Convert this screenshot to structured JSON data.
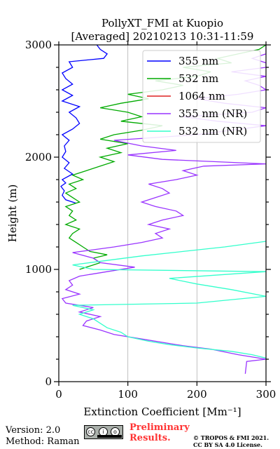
{
  "chart_data": {
    "type": "line",
    "title": [
      "PollyXT_FMI at Kuopio",
      "[Averaged] 20210213 10:31-11:59"
    ],
    "xlabel": "Extinction Coefficient [Mm⁻¹]",
    "ylabel": "Height (m)",
    "xlim": [
      0,
      300
    ],
    "ylim": [
      0,
      3000
    ],
    "xticks": [
      0,
      100,
      200,
      300
    ],
    "yticks": [
      0,
      1000,
      2000,
      3000
    ],
    "grid": true,
    "legend_position": "top-right",
    "series": [
      {
        "name": "355 nm",
        "color": "#0000ff",
        "points": [
          [
            25,
            1590
          ],
          [
            10,
            1620
          ],
          [
            5,
            1660
          ],
          [
            8,
            1700
          ],
          [
            3,
            1740
          ],
          [
            10,
            1770
          ],
          [
            5,
            1800
          ],
          [
            20,
            1850
          ],
          [
            8,
            1900
          ],
          [
            15,
            1950
          ],
          [
            5,
            2000
          ],
          [
            10,
            2050
          ],
          [
            8,
            2100
          ],
          [
            15,
            2150
          ],
          [
            5,
            2200
          ],
          [
            20,
            2250
          ],
          [
            30,
            2300
          ],
          [
            25,
            2350
          ],
          [
            15,
            2400
          ],
          [
            30,
            2450
          ],
          [
            5,
            2500
          ],
          [
            20,
            2550
          ],
          [
            5,
            2600
          ],
          [
            20,
            2650
          ],
          [
            10,
            2700
          ],
          [
            5,
            2750
          ],
          [
            20,
            2800
          ],
          [
            15,
            2850
          ],
          [
            65,
            2880
          ],
          [
            70,
            2920
          ],
          [
            60,
            2960
          ],
          [
            55,
            3000
          ]
        ]
      },
      {
        "name": "532 nm",
        "color": "#00aa00",
        "points": [
          [
            30,
            1000
          ],
          [
            45,
            1030
          ],
          [
            60,
            1060
          ],
          [
            50,
            1100
          ],
          [
            70,
            1130
          ],
          [
            45,
            1160
          ],
          [
            35,
            1200
          ],
          [
            25,
            1240
          ],
          [
            15,
            1280
          ],
          [
            20,
            1320
          ],
          [
            30,
            1360
          ],
          [
            10,
            1400
          ],
          [
            25,
            1440
          ],
          [
            15,
            1480
          ],
          [
            20,
            1520
          ],
          [
            10,
            1560
          ],
          [
            30,
            1600
          ],
          [
            20,
            1640
          ],
          [
            10,
            1680
          ],
          [
            25,
            1720
          ],
          [
            15,
            1760
          ],
          [
            35,
            1800
          ],
          [
            20,
            1840
          ],
          [
            40,
            1880
          ],
          [
            60,
            1920
          ],
          [
            80,
            1960
          ],
          [
            60,
            2000
          ],
          [
            90,
            2040
          ],
          [
            70,
            2080
          ],
          [
            100,
            2120
          ],
          [
            60,
            2160
          ],
          [
            80,
            2200
          ],
          [
            120,
            2240
          ],
          [
            150,
            2280
          ],
          [
            90,
            2320
          ],
          [
            120,
            2360
          ],
          [
            100,
            2400
          ],
          [
            60,
            2440
          ],
          [
            90,
            2480
          ],
          [
            130,
            2520
          ],
          [
            100,
            2560
          ],
          [
            150,
            2600
          ],
          [
            180,
            2640
          ],
          [
            140,
            2680
          ],
          [
            200,
            2720
          ],
          [
            220,
            2760
          ],
          [
            180,
            2800
          ],
          [
            250,
            2840
          ],
          [
            230,
            2880
          ],
          [
            260,
            2920
          ],
          [
            290,
            2960
          ],
          [
            300,
            3000
          ]
        ]
      },
      {
        "name": "1064 nm",
        "color": "#dd2222",
        "points": []
      },
      {
        "name": "355 nm (NR)",
        "color": "#9933ff",
        "points": [
          [
            270,
            70
          ],
          [
            272,
            180
          ],
          [
            300,
            200
          ],
          [
            260,
            240
          ],
          [
            220,
            290
          ],
          [
            180,
            320
          ],
          [
            150,
            350
          ],
          [
            120,
            380
          ],
          [
            80,
            420
          ],
          [
            60,
            460
          ],
          [
            35,
            500
          ],
          [
            40,
            540
          ],
          [
            60,
            580
          ],
          [
            30,
            620
          ],
          [
            50,
            660
          ],
          [
            10,
            700
          ],
          [
            5,
            740
          ],
          [
            30,
            780
          ],
          [
            10,
            820
          ],
          [
            20,
            860
          ],
          [
            15,
            900
          ],
          [
            30,
            940
          ],
          [
            70,
            980
          ],
          [
            110,
            1020
          ],
          [
            60,
            1060
          ],
          [
            50,
            1100
          ],
          [
            20,
            1150
          ],
          [
            80,
            1200
          ],
          [
            120,
            1240
          ],
          [
            150,
            1280
          ],
          [
            140,
            1320
          ],
          [
            160,
            1360
          ],
          [
            130,
            1400
          ],
          [
            150,
            1440
          ],
          [
            180,
            1480
          ],
          [
            170,
            1520
          ],
          [
            140,
            1560
          ],
          [
            120,
            1600
          ],
          [
            140,
            1640
          ],
          [
            160,
            1680
          ],
          [
            150,
            1720
          ],
          [
            130,
            1760
          ],
          [
            170,
            1800
          ],
          [
            200,
            1840
          ],
          [
            180,
            1880
          ],
          [
            210,
            1920
          ],
          [
            300,
            1940
          ],
          [
            150,
            1980
          ],
          [
            100,
            2020
          ],
          [
            170,
            2060
          ],
          [
            120,
            2100
          ],
          [
            80,
            2150
          ],
          [
            200,
            2200
          ],
          [
            250,
            2240
          ],
          [
            300,
            2280
          ],
          [
            230,
            2320
          ],
          [
            180,
            2360
          ],
          [
            280,
            2400
          ],
          [
            300,
            2440
          ],
          [
            240,
            2480
          ],
          [
            200,
            2520
          ],
          [
            260,
            2560
          ],
          [
            300,
            2600
          ],
          [
            290,
            2640
          ],
          [
            270,
            2680
          ],
          [
            300,
            2720
          ],
          [
            250,
            2760
          ],
          [
            300,
            2800
          ],
          [
            300,
            2840
          ],
          [
            280,
            2880
          ],
          [
            300,
            2920
          ],
          [
            300,
            2960
          ],
          [
            300,
            3000
          ]
        ]
      },
      {
        "name": "532 nm (NR)",
        "color": "#33ffcc",
        "points": [
          [
            300,
            210
          ],
          [
            280,
            240
          ],
          [
            250,
            270
          ],
          [
            200,
            300
          ],
          [
            160,
            330
          ],
          [
            130,
            360
          ],
          [
            100,
            400
          ],
          [
            90,
            440
          ],
          [
            70,
            480
          ],
          [
            60,
            520
          ],
          [
            50,
            560
          ],
          [
            30,
            600
          ],
          [
            50,
            640
          ],
          [
            20,
            680
          ],
          [
            200,
            700
          ],
          [
            300,
            760
          ],
          [
            250,
            820
          ],
          [
            200,
            870
          ],
          [
            160,
            920
          ],
          [
            300,
            980
          ],
          [
            50,
            1000
          ],
          [
            20,
            1040
          ],
          [
            70,
            1080
          ],
          [
            120,
            1120
          ],
          [
            180,
            1160
          ],
          [
            240,
            1200
          ],
          [
            300,
            1250
          ]
        ]
      }
    ]
  },
  "footer": {
    "version": "Version: 2.0",
    "method": "Method: Raman",
    "preliminary_line1": "Preliminary",
    "preliminary_line2": "Results.",
    "copyright_line1": "© TROPOS & FMI 2021.",
    "copyright_line2": "CC BY SA 4.0 License."
  }
}
